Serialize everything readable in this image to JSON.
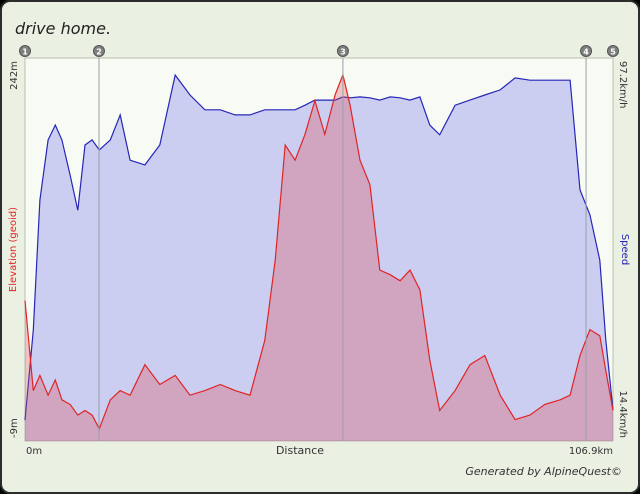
{
  "chart_data": {
    "type": "area-profile",
    "title": "drive home.",
    "footer": "Generated by AlpineQuest©",
    "xlabel": "Distance",
    "x": [
      0,
      1.5,
      2.7,
      4.2,
      5.5,
      6.7,
      8.2,
      9.6,
      10.9,
      12.2,
      13.5,
      15.5,
      17.3,
      19.1,
      21.8,
      24.5,
      27.3,
      30,
      32.7,
      35.5,
      38.2,
      40.9,
      43.6,
      45.5,
      47.3,
      49.1,
      50.9,
      52.7,
      54.5,
      56.4,
      57.8,
      59.1,
      60.9,
      62.7,
      64.5,
      66.4,
      68.2,
      70,
      71.8,
      73.6,
      75.4,
      78.2,
      80.9,
      83.6,
      86.4,
      89.1,
      91.8,
      94.5,
      97.3,
      99.1,
      100.9,
      102.7,
      104.5,
      105.6,
      106.9
    ],
    "series": [
      {
        "name": "Speed",
        "color": "#2626b8",
        "fill": "rgba(110,110,235,0.32)",
        "axis": "y2",
        "values": [
          18.9,
          38.4,
          66.5,
          79.5,
          82.7,
          79.5,
          71.9,
          64.3,
          78.4,
          79.5,
          77.3,
          79.5,
          84.9,
          75.1,
          74.1,
          78.4,
          93.5,
          89.2,
          86,
          86,
          84.9,
          84.9,
          86,
          86,
          86,
          86,
          87,
          88.1,
          88.1,
          88.1,
          88.8,
          88.6,
          88.8,
          88.6,
          88.1,
          88.8,
          88.6,
          88.1,
          88.8,
          82.7,
          80.6,
          87,
          88.1,
          89.2,
          90.3,
          92.9,
          92.4,
          92.4,
          92.4,
          92.4,
          68.7,
          63.3,
          53.5,
          36.2,
          21.1
        ]
      },
      {
        "name": "Elevation (geoid)",
        "color": "#e02424",
        "fill": "rgba(225,80,90,0.32)",
        "axis": "y",
        "values": [
          83,
          24,
          34,
          21,
          31,
          18,
          15,
          8,
          11,
          8,
          -1,
          18,
          24,
          21,
          41,
          28,
          34,
          21,
          24,
          28,
          24,
          21,
          57,
          110,
          185,
          175,
          192,
          214,
          192,
          218,
          231,
          211,
          175,
          159,
          103,
          100,
          96,
          103,
          90,
          44,
          11,
          24,
          41,
          47,
          21,
          5,
          8,
          15,
          18,
          21,
          47,
          64,
          60,
          37,
          11
        ]
      }
    ],
    "xlim": [
      0,
      106.9
    ],
    "xticks": [
      {
        "value": 0,
        "label": "0m"
      },
      {
        "value": 106.9,
        "label": "106.9km"
      }
    ],
    "ylim": [
      -9,
      242
    ],
    "yticks": [
      {
        "value": -9,
        "label": "-9m"
      },
      {
        "value": 242,
        "label": "242m"
      }
    ],
    "y2lim": [
      14.4,
      97.2
    ],
    "y2ticks": [
      {
        "value": 14.4,
        "label": "14.4km/h"
      },
      {
        "value": 97.2,
        "label": "97.2km/h"
      }
    ],
    "markers": [
      {
        "label": "1",
        "x": 0
      },
      {
        "label": "2",
        "x": 13.45
      },
      {
        "label": "3",
        "x": 57.8
      },
      {
        "label": "4",
        "x": 102
      },
      {
        "label": "5",
        "x": 106.9
      }
    ]
  }
}
